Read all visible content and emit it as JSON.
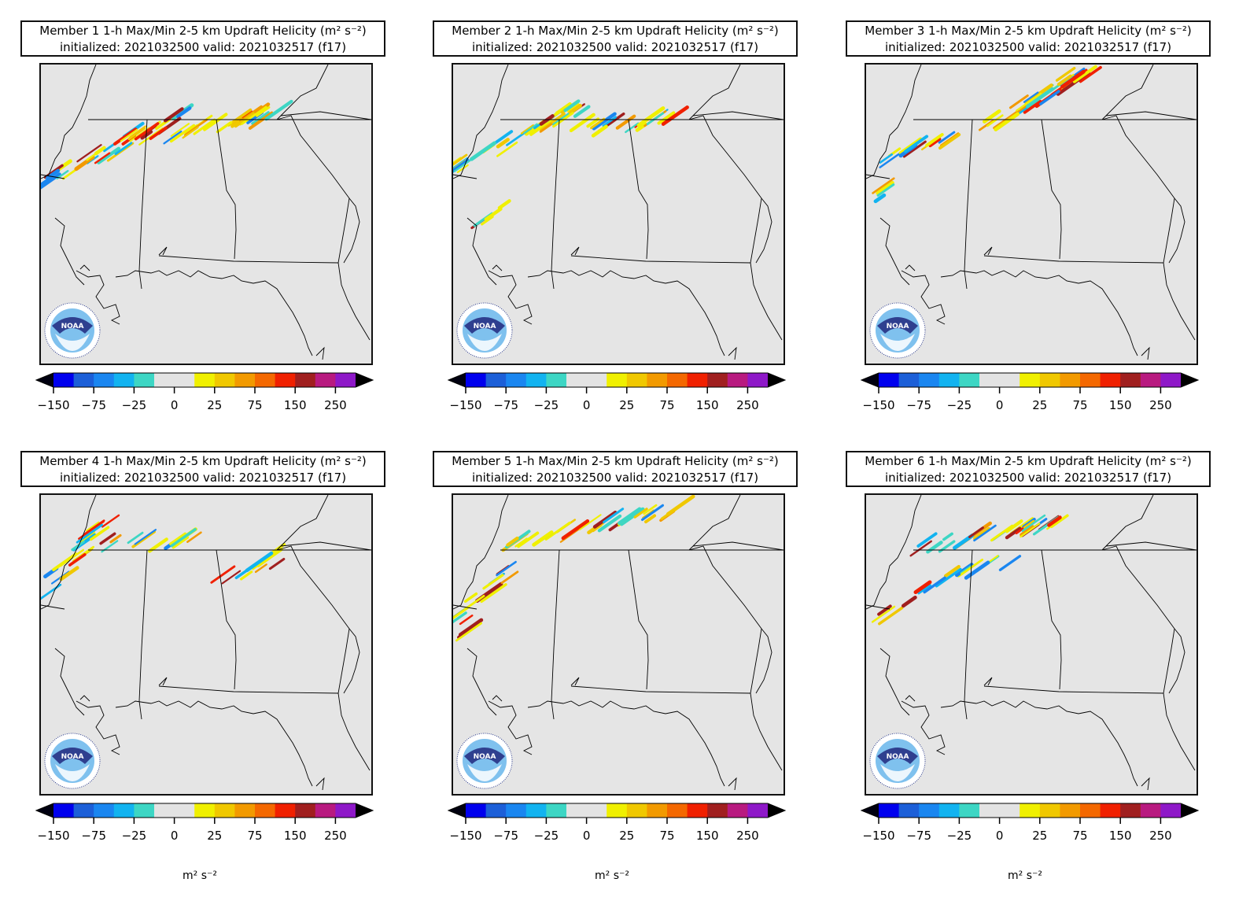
{
  "figure": {
    "init_label": "initialized: 2021032500 valid: 2021032517 (f17)",
    "colorbar": {
      "ticks": [
        "−150",
        "−75",
        "−25",
        "0",
        "25",
        "75",
        "150",
        "250"
      ],
      "unit_label": "m² s⁻²",
      "colors": [
        "#0000ee",
        "#1c5fd8",
        "#1a86f0",
        "#12b3f0",
        "#3dd6c4",
        "#e3e3e3",
        "#e3e3e3",
        "#f0f000",
        "#f0c800",
        "#f29a00",
        "#f46800",
        "#f02000",
        "#a01f1f",
        "#b81a80",
        "#8e18c8"
      ]
    },
    "logo_text": "NOAA"
  },
  "panels": [
    {
      "title": "Member 1 1-h Max/Min 2-5 km Updraft Helicity (m² s⁻²)",
      "member": 1
    },
    {
      "title": "Member 2 1-h Max/Min 2-5 km Updraft Helicity (m² s⁻²)",
      "member": 2
    },
    {
      "title": "Member 3 1-h Max/Min 2-5 km Updraft Helicity (m² s⁻²)",
      "member": 3
    },
    {
      "title": "Member 4 1-h Max/Min 2-5 km Updraft Helicity (m² s⁻²)",
      "member": 4
    },
    {
      "title": "Member 5 1-h Max/Min 2-5 km Updraft Helicity (m² s⁻²)",
      "member": 5
    },
    {
      "title": "Member 6 1-h Max/Min 2-5 km Updraft Helicity (m² s⁻²)",
      "member": 6
    }
  ]
}
